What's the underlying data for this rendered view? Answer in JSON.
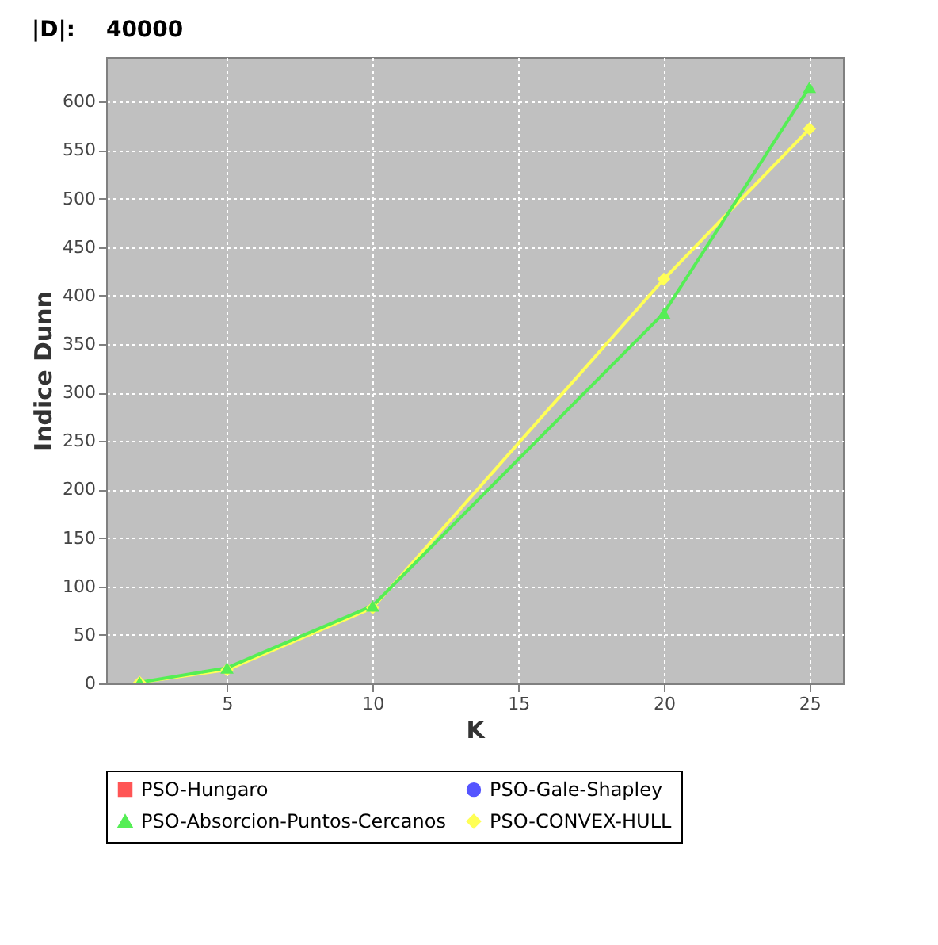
{
  "chart_data": {
    "type": "line",
    "title": "|D|:    40000",
    "xlabel": "K",
    "ylabel": "Indice Dunn",
    "x": [
      2,
      5,
      10,
      20,
      25
    ],
    "series": [
      {
        "name": "PSO-Hungaro",
        "color": "#ff5555",
        "marker": "square",
        "values": [
          null,
          null,
          null,
          null,
          null
        ]
      },
      {
        "name": "PSO-Gale-Shapley",
        "color": "#5555ff",
        "marker": "circle",
        "values": [
          null,
          null,
          null,
          null,
          null
        ]
      },
      {
        "name": "PSO-Absorcion-Puntos-Cercanos",
        "color": "#55ee55",
        "marker": "triangle",
        "values": [
          1,
          16,
          80,
          382,
          615
        ]
      },
      {
        "name": "PSO-CONVEX-HULL",
        "color": "#ffff55",
        "marker": "diamond",
        "values": [
          1,
          14,
          78,
          417,
          572
        ]
      }
    ],
    "xlim": [
      0.85,
      26.15
    ],
    "ylim": [
      0,
      646
    ],
    "xticks": [
      5,
      10,
      15,
      20,
      25
    ],
    "yticks": [
      0,
      50,
      100,
      150,
      200,
      250,
      300,
      350,
      400,
      450,
      500,
      550,
      600
    ],
    "grid": true,
    "legend": "bottom"
  }
}
